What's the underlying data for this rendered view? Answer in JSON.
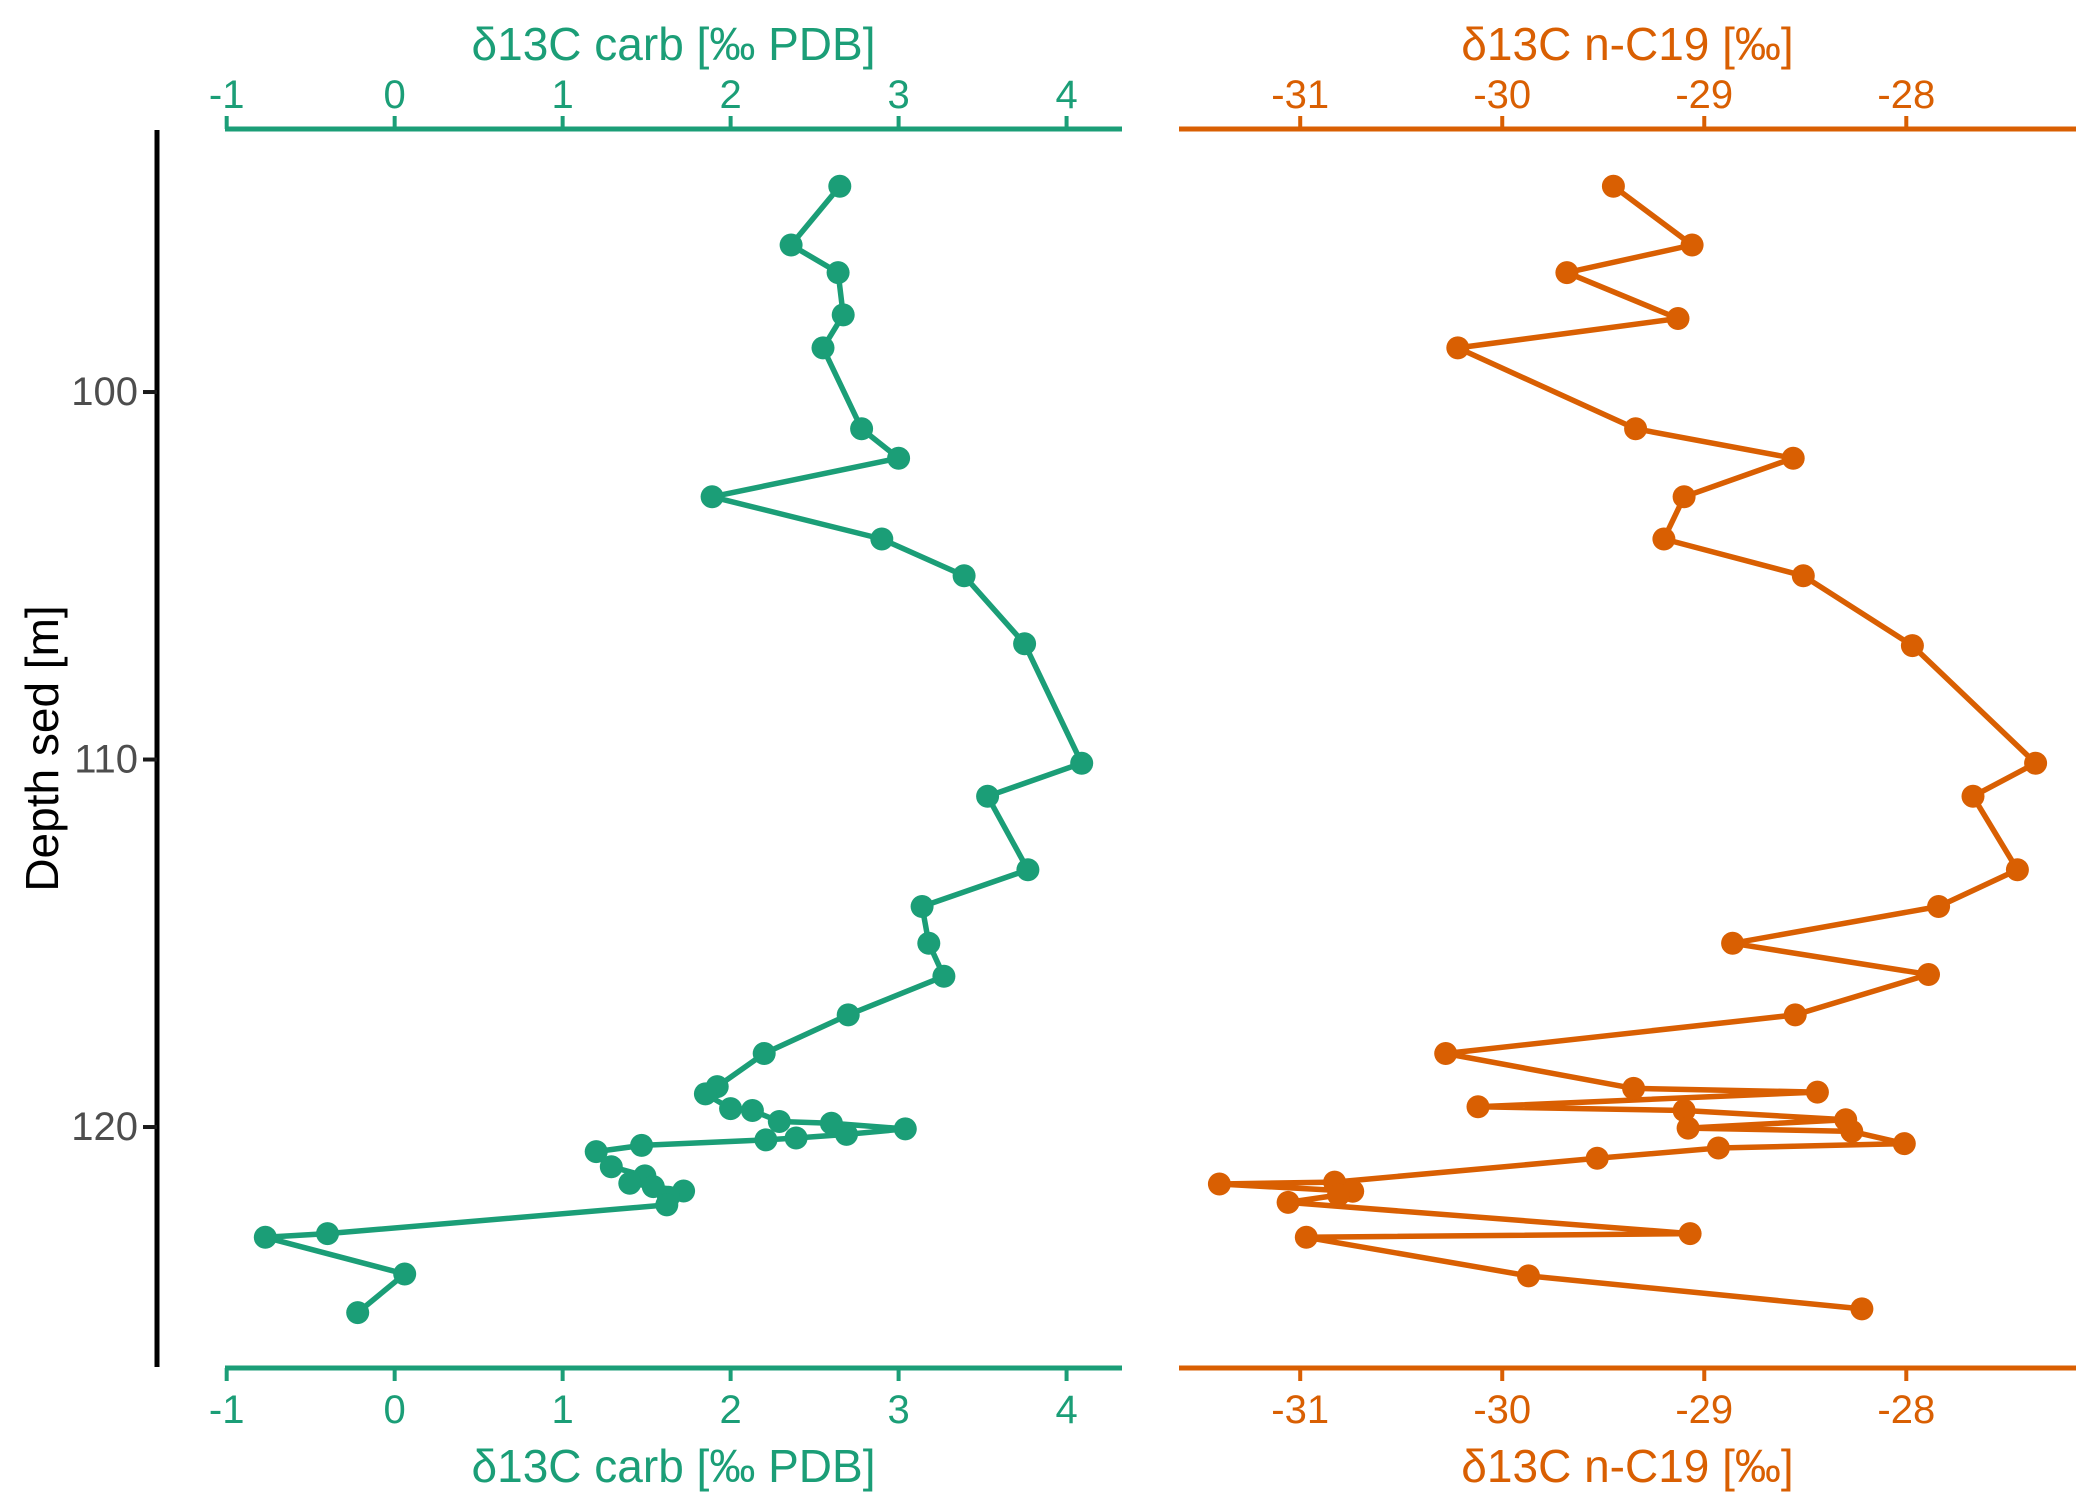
{
  "figure": {
    "background": "#ffffff",
    "description": "Dual-panel depth profile scatter-line plot"
  },
  "y_axis": {
    "title": "Depth sed [m]",
    "ticks": [
      100,
      110,
      120
    ],
    "lim": [
      92.87,
      126.53
    ],
    "line_color": "#000000",
    "tick_color": "#1a1a1a",
    "label_color": "#4d4d4d"
  },
  "chart_data": [
    {
      "type": "line",
      "panel": "left",
      "title": "δ13C carb [‰ PDB]",
      "legend": "none",
      "grid": "off",
      "color": "#1b9e77",
      "xticks": [
        -1,
        0,
        1,
        2,
        3,
        4
      ],
      "xlim": [
        -1.01,
        4.33
      ],
      "ylim": [
        92.87,
        126.53
      ],
      "x": [
        2.65,
        2.36,
        2.64,
        2.67,
        2.55,
        2.78,
        3.0,
        1.89,
        2.9,
        3.39,
        3.75,
        4.09,
        3.53,
        3.77,
        3.14,
        3.18,
        3.27,
        2.7,
        2.2,
        1.92,
        1.85,
        2.0,
        2.13,
        2.29,
        2.6,
        3.04,
        2.69,
        2.39,
        2.21,
        1.47,
        1.2,
        1.29,
        1.49,
        1.4,
        1.54,
        1.72,
        1.63,
        1.62,
        -0.4,
        -0.77,
        0.06,
        -0.22
      ],
      "depth": [
        94.4,
        96.0,
        96.75,
        97.9,
        98.8,
        101.0,
        101.8,
        102.85,
        104.0,
        105.0,
        106.85,
        110.1,
        111.0,
        113.0,
        114.0,
        115.0,
        115.9,
        116.95,
        118.0,
        118.9,
        119.1,
        119.5,
        119.55,
        119.85,
        119.9,
        120.05,
        120.2,
        120.3,
        120.35,
        120.5,
        120.67,
        121.08,
        121.33,
        121.53,
        121.62,
        121.74,
        121.91,
        122.12,
        122.9,
        123.0,
        124.0,
        125.05
      ]
    },
    {
      "type": "line",
      "panel": "right",
      "title": "δ13C n-C19 [‰]",
      "legend": "none",
      "grid": "off",
      "color": "#d95f02",
      "xticks": [
        -31,
        -30,
        -29,
        -28
      ],
      "xlim": [
        -31.6,
        -27.16
      ],
      "ylim": [
        92.87,
        126.53
      ],
      "x": [
        -29.45,
        -29.06,
        -29.68,
        -29.13,
        -30.22,
        -29.34,
        -28.56,
        -29.1,
        -29.2,
        -28.51,
        -27.97,
        -27.36,
        -27.67,
        -27.45,
        -27.84,
        -28.86,
        -27.89,
        -28.55,
        -30.28,
        -29.35,
        -28.44,
        -30.12,
        -29.1,
        -28.3,
        -29.08,
        -28.27,
        -28.01,
        -28.93,
        -29.53,
        -30.83,
        -31.4,
        -30.74,
        -30.81,
        -31.06,
        -29.07,
        -30.97,
        -29.87,
        -28.22
      ],
      "depth": [
        94.4,
        96.0,
        96.75,
        98.0,
        98.8,
        101.0,
        101.8,
        102.85,
        104.0,
        105.0,
        106.9,
        110.1,
        111.0,
        113.0,
        114.0,
        115.0,
        115.85,
        116.95,
        118.0,
        118.95,
        119.05,
        119.45,
        119.55,
        119.8,
        120.03,
        120.12,
        120.45,
        120.57,
        120.85,
        121.5,
        121.55,
        121.75,
        121.85,
        122.05,
        122.9,
        123.0,
        124.05,
        124.95
      ]
    }
  ]
}
